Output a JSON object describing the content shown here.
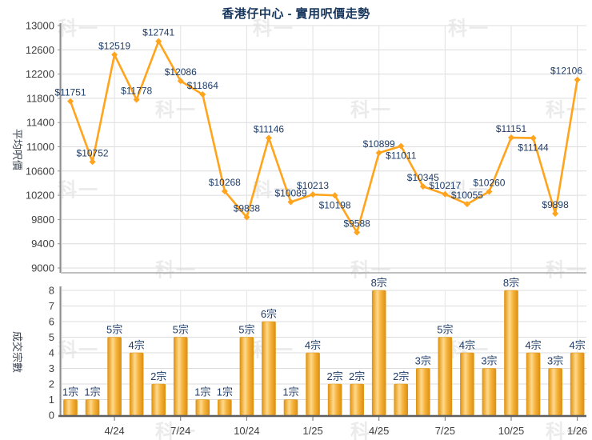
{
  "title": "香港仔中心 - 實用呎價走勢",
  "watermark_text": "科一",
  "colors": {
    "title": "#17365D",
    "data_label": "#1F3D68",
    "axis_text": "#404040",
    "line": "#FFA41C",
    "bar_edge": "#E0930F",
    "bar_light": "#FFD98E",
    "bar_dark": "#DD8F10",
    "grid": "#DCDCDC",
    "axis_line": "#8C8C8C",
    "x_axis_line": "#5F5F5F"
  },
  "x_axis": {
    "n_points": 24,
    "tick_labels": [
      "4/24",
      "7/24",
      "10/24",
      "1/25",
      "4/25",
      "7/25",
      "10/25",
      "1/26"
    ],
    "tick_indices": [
      2,
      5,
      8,
      11,
      14,
      17,
      20,
      23
    ]
  },
  "chart_data": [
    {
      "type": "line",
      "name": "price-trend",
      "ylabel": "平均呎價",
      "ylim": [
        9000,
        13000
      ],
      "ytick_step": 400,
      "ytick_labels": [
        "13000",
        "12600",
        "12200",
        "11800",
        "11400",
        "11000",
        "10600",
        "10200",
        "9800",
        "9400",
        "9000"
      ],
      "values": [
        11751,
        10752,
        12519,
        11778,
        12741,
        12086,
        11864,
        10268,
        9838,
        11146,
        10089,
        10213,
        10198,
        9588,
        10899,
        11011,
        10345,
        10217,
        10055,
        10260,
        11151,
        11144,
        9898,
        12106
      ],
      "point_labels": [
        "$11751",
        "$10752",
        "$12519",
        "$11778",
        "$12741",
        "$12086",
        "$11864",
        "$10268",
        "$9838",
        "$11146",
        "$10089",
        "$10213",
        "$10198",
        "$9588",
        "$10899",
        "$11011",
        "$10345",
        "$10217",
        "$10055",
        "$10260",
        "$11151",
        "$11144",
        "$9898",
        "$12106"
      ],
      "label_below_indices": [
        12,
        15,
        21
      ],
      "grid": true,
      "legend": "none"
    },
    {
      "type": "bar",
      "name": "transaction-count",
      "ylabel": "成交宗數",
      "ylim": [
        0,
        8
      ],
      "ytick_step": 1,
      "ytick_labels": [
        "8",
        "7",
        "6",
        "5",
        "4",
        "3",
        "2",
        "1",
        "0"
      ],
      "values": [
        1,
        1,
        5,
        4,
        2,
        5,
        1,
        1,
        5,
        6,
        1,
        4,
        2,
        2,
        8,
        2,
        3,
        5,
        4,
        3,
        8,
        4,
        3,
        4
      ],
      "bar_labels": [
        "1宗",
        "1宗",
        "5宗",
        "4宗",
        "2宗",
        "5宗",
        "1宗",
        "1宗",
        "5宗",
        "6宗",
        "1宗",
        "4宗",
        "2宗",
        "2宗",
        "8宗",
        "2宗",
        "3宗",
        "5宗",
        "4宗",
        "3宗",
        "8宗",
        "4宗",
        "3宗",
        "4宗"
      ],
      "grid": true,
      "legend": "none"
    }
  ]
}
